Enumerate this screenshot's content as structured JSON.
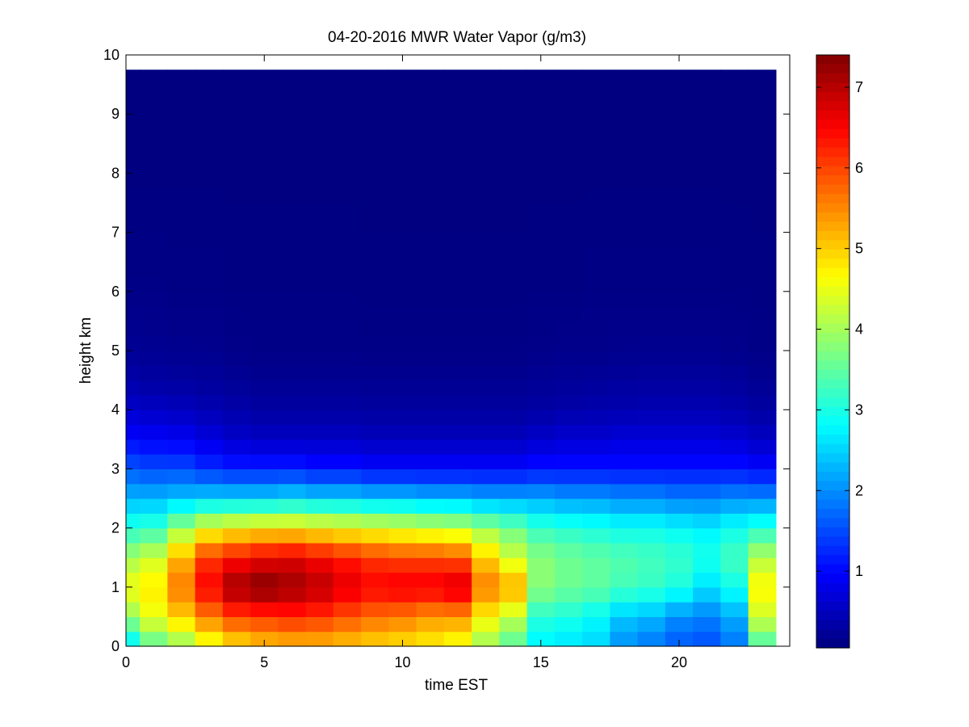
{
  "chart_data": {
    "type": "heatmap",
    "title": "04-20-2016 MWR Water Vapor (g/m3)",
    "xlabel": "time EST",
    "ylabel": "height km",
    "xlim": [
      0,
      24
    ],
    "ylim": [
      0,
      10
    ],
    "xticks": [
      "0",
      "5",
      "10",
      "15",
      "20"
    ],
    "yticks": [
      "0",
      "1",
      "2",
      "3",
      "4",
      "5",
      "6",
      "7",
      "8",
      "9",
      "10"
    ],
    "colormap": "jet",
    "clim": [
      0.05,
      7.4
    ],
    "colorbar_ticks": [
      "1",
      "2",
      "3",
      "4",
      "5",
      "6",
      "7"
    ],
    "x_range": [
      0,
      23.5
    ],
    "y_range": [
      0,
      9.75
    ],
    "time_hours": [
      0,
      1,
      2,
      3,
      4,
      5,
      6,
      7,
      8,
      9,
      10,
      11,
      12,
      13,
      14,
      15,
      16,
      17,
      18,
      19,
      20,
      21,
      22,
      23
    ],
    "profile_heights_km": [
      0,
      0.5,
      1.0,
      1.5,
      2.0,
      2.5,
      3.0,
      3.5,
      4.0,
      4.5,
      5.0,
      6.0,
      8.0,
      9.75
    ],
    "profile_values": [
      [
        2.6,
        3.9,
        4.6,
        4.0,
        3.1,
        2.3,
        1.6,
        1.0,
        0.6,
        0.35,
        0.2,
        0.1,
        0.06,
        0.05
      ],
      [
        3.4,
        4.5,
        4.8,
        4.3,
        3.2,
        2.3,
        1.5,
        0.95,
        0.55,
        0.3,
        0.18,
        0.1,
        0.06,
        0.05
      ],
      [
        3.8,
        5.0,
        5.6,
        5.2,
        3.9,
        2.4,
        1.5,
        0.9,
        0.5,
        0.28,
        0.16,
        0.09,
        0.06,
        0.05
      ],
      [
        4.4,
        5.6,
        6.5,
        6.1,
        4.5,
        2.5,
        1.3,
        0.75,
        0.42,
        0.25,
        0.15,
        0.09,
        0.06,
        0.05
      ],
      [
        4.8,
        6.0,
        7.2,
        6.4,
        4.7,
        2.5,
        1.2,
        0.6,
        0.35,
        0.2,
        0.12,
        0.08,
        0.06,
        0.05
      ],
      [
        5.0,
        6.1,
        7.4,
        6.6,
        4.8,
        2.5,
        1.2,
        0.55,
        0.3,
        0.18,
        0.11,
        0.08,
        0.06,
        0.05
      ],
      [
        5.1,
        6.2,
        7.2,
        6.7,
        4.8,
        2.6,
        1.2,
        0.55,
        0.3,
        0.18,
        0.11,
        0.08,
        0.06,
        0.05
      ],
      [
        5.1,
        6.1,
        7.0,
        6.5,
        4.7,
        2.5,
        1.1,
        0.55,
        0.3,
        0.18,
        0.11,
        0.08,
        0.06,
        0.05
      ],
      [
        5.0,
        5.9,
        6.7,
        6.3,
        4.6,
        2.5,
        1.1,
        0.55,
        0.3,
        0.18,
        0.11,
        0.08,
        0.06,
        0.05
      ],
      [
        4.9,
        5.7,
        6.5,
        6.1,
        4.5,
        2.4,
        1.0,
        0.5,
        0.28,
        0.17,
        0.1,
        0.07,
        0.06,
        0.05
      ],
      [
        4.8,
        5.6,
        6.6,
        6.0,
        4.4,
        2.4,
        1.0,
        0.5,
        0.28,
        0.17,
        0.1,
        0.07,
        0.06,
        0.05
      ],
      [
        4.7,
        5.4,
        6.6,
        6.0,
        4.3,
        2.3,
        1.0,
        0.5,
        0.28,
        0.17,
        0.1,
        0.07,
        0.06,
        0.05
      ],
      [
        4.5,
        5.4,
        6.8,
        5.9,
        4.2,
        2.3,
        1.0,
        0.5,
        0.28,
        0.17,
        0.1,
        0.07,
        0.06,
        0.05
      ],
      [
        3.9,
        4.7,
        5.6,
        5.0,
        3.9,
        2.2,
        1.0,
        0.5,
        0.28,
        0.17,
        0.1,
        0.07,
        0.06,
        0.05
      ],
      [
        3.4,
        4.2,
        5.3,
        4.3,
        3.6,
        2.2,
        1.0,
        0.5,
        0.28,
        0.17,
        0.1,
        0.07,
        0.06,
        0.05
      ],
      [
        2.7,
        3.1,
        3.8,
        3.8,
        3.2,
        2.2,
        1.1,
        0.6,
        0.32,
        0.2,
        0.12,
        0.08,
        0.06,
        0.05
      ],
      [
        2.6,
        3.0,
        3.6,
        3.6,
        3.1,
        2.1,
        1.1,
        0.65,
        0.35,
        0.22,
        0.13,
        0.08,
        0.06,
        0.05
      ],
      [
        2.5,
        2.8,
        3.5,
        3.5,
        3.0,
        2.1,
        1.1,
        0.65,
        0.38,
        0.24,
        0.14,
        0.09,
        0.06,
        0.05
      ],
      [
        2.0,
        2.4,
        3.3,
        3.4,
        2.9,
        2.0,
        1.1,
        0.7,
        0.4,
        0.26,
        0.15,
        0.09,
        0.06,
        0.05
      ],
      [
        1.8,
        2.3,
        3.2,
        3.3,
        2.9,
        2.0,
        1.1,
        0.7,
        0.42,
        0.27,
        0.16,
        0.09,
        0.06,
        0.05
      ],
      [
        1.6,
        2.0,
        3.0,
        3.2,
        2.8,
        1.9,
        1.1,
        0.7,
        0.42,
        0.27,
        0.16,
        0.09,
        0.06,
        0.05
      ],
      [
        1.5,
        1.9,
        2.6,
        3.0,
        2.7,
        1.9,
        1.1,
        0.7,
        0.42,
        0.27,
        0.16,
        0.09,
        0.06,
        0.05
      ],
      [
        1.8,
        2.2,
        2.9,
        3.3,
        2.9,
        2.0,
        1.1,
        0.65,
        0.38,
        0.24,
        0.14,
        0.08,
        0.06,
        0.05
      ],
      [
        3.3,
        4.3,
        4.7,
        4.1,
        3.1,
        2.0,
        1.0,
        0.55,
        0.3,
        0.18,
        0.11,
        0.07,
        0.06,
        0.05
      ]
    ]
  }
}
